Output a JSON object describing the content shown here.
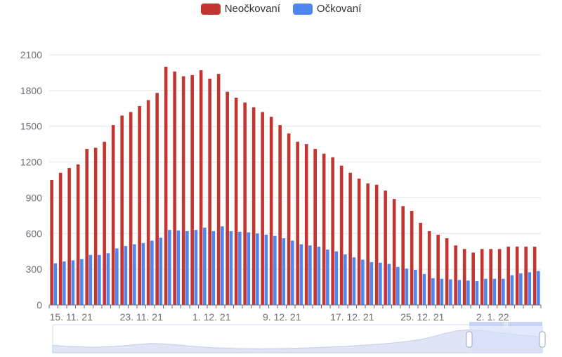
{
  "colors": {
    "unvaccinated": "#c23531",
    "vaccinated": "#4f87ef",
    "grid": "#e0e6f1",
    "axis": "#6e7079",
    "zoom_fill": "#d7e0fb",
    "zoom_border": "#d2dbee"
  },
  "legend": [
    {
      "label": "Neočkovaní",
      "color": "#c23531"
    },
    {
      "label": "Očkovaní",
      "color": "#4f87ef"
    }
  ],
  "chart_data": {
    "type": "bar",
    "ylim": [
      0,
      2100
    ],
    "yticks": [
      0,
      300,
      600,
      900,
      1200,
      1500,
      1800,
      2100
    ],
    "grid": true,
    "legend_position": "top-center",
    "x_tick_labels": [
      {
        "index": 2,
        "label": "15. 11. 21"
      },
      {
        "index": 10,
        "label": "23. 11. 21"
      },
      {
        "index": 18,
        "label": "1. 12. 21"
      },
      {
        "index": 26,
        "label": "9. 12. 21"
      },
      {
        "index": 34,
        "label": "17. 12. 21"
      },
      {
        "index": 42,
        "label": "25. 12. 21"
      },
      {
        "index": 50,
        "label": "2. 1. 22"
      }
    ],
    "series": [
      {
        "name": "Neočkovaní",
        "values": [
          1050,
          1110,
          1150,
          1180,
          1310,
          1320,
          1370,
          1510,
          1590,
          1620,
          1670,
          1720,
          1780,
          2000,
          1960,
          1920,
          1930,
          1970,
          1900,
          1940,
          1790,
          1740,
          1700,
          1660,
          1620,
          1580,
          1510,
          1440,
          1370,
          1350,
          1310,
          1270,
          1240,
          1170,
          1110,
          1060,
          1020,
          1010,
          960,
          890,
          830,
          790,
          690,
          620,
          590,
          560,
          500,
          470,
          440,
          470,
          470,
          470,
          490,
          490,
          490,
          490
        ]
      },
      {
        "name": "Očkovaní",
        "values": [
          350,
          365,
          375,
          385,
          420,
          420,
          435,
          475,
          495,
          510,
          520,
          540,
          565,
          630,
          625,
          620,
          630,
          650,
          620,
          660,
          620,
          615,
          610,
          600,
          590,
          580,
          560,
          540,
          510,
          500,
          490,
          465,
          450,
          425,
          400,
          380,
          360,
          355,
          345,
          320,
          305,
          295,
          260,
          225,
          220,
          215,
          210,
          205,
          200,
          220,
          220,
          220,
          250,
          265,
          275,
          285
        ]
      }
    ]
  },
  "zoom": {
    "handle_label": "|||",
    "overview": [
      230,
      220,
      215,
      210,
      212,
      218,
      228,
      240,
      250,
      246,
      236,
      224,
      214,
      205,
      200,
      196,
      194,
      193,
      194,
      196,
      199,
      203,
      208,
      214,
      220,
      228,
      236,
      246,
      258,
      272,
      290,
      320,
      355,
      385,
      395,
      388,
      372,
      356,
      342,
      330,
      322
    ]
  }
}
